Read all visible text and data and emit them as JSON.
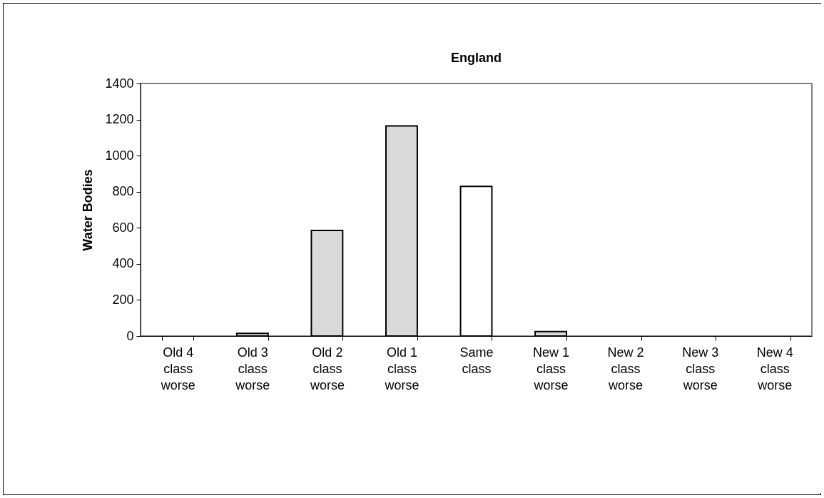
{
  "chart_data": {
    "type": "bar",
    "title": "England",
    "ylabel": "Water Bodies",
    "categories": [
      "Old 4 class worse",
      "Old 3 class worse",
      "Old 2 class worse",
      "Old 1 class worse",
      "Same class",
      "New 1 class worse",
      "New 2 class worse",
      "New 3 class worse",
      "New 4 class worse"
    ],
    "values": [
      0,
      15,
      585,
      1165,
      830,
      25,
      0,
      0,
      0
    ],
    "colors": [
      "#d9d9d9",
      "#d9d9d9",
      "#d9d9d9",
      "#d9d9d9",
      "#ffffff",
      "#d9d9d9",
      "#d9d9d9",
      "#d9d9d9",
      "#d9d9d9"
    ],
    "ylim": [
      0,
      1400
    ],
    "yticks": [
      0,
      200,
      400,
      600,
      800,
      1000,
      1200,
      1400
    ],
    "grid": false
  }
}
